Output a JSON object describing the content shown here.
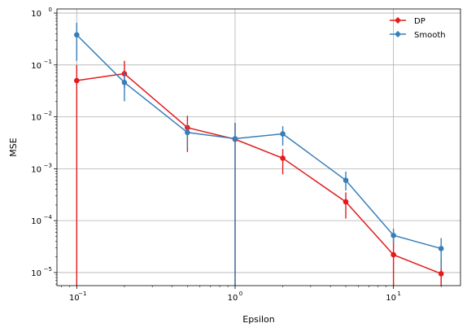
{
  "chart_data": {
    "type": "line",
    "xlabel": "Epsilon",
    "ylabel": "MSE",
    "xscale": "log",
    "yscale": "log",
    "xlim": [
      0.075,
      26.5
    ],
    "ylim": [
      5.6e-06,
      1.2
    ],
    "grid": true,
    "legend_position": "top-right",
    "x_ticks": [
      {
        "value": 0.1,
        "base": "10",
        "exp": "−1"
      },
      {
        "value": 1,
        "base": "10",
        "exp": "0"
      },
      {
        "value": 10,
        "base": "10",
        "exp": "1"
      }
    ],
    "y_ticks": [
      {
        "value": 1e-05,
        "base": "10",
        "exp": "−5"
      },
      {
        "value": 0.0001,
        "base": "10",
        "exp": "−4"
      },
      {
        "value": 0.001,
        "base": "10",
        "exp": "−3"
      },
      {
        "value": 0.01,
        "base": "10",
        "exp": "−2"
      },
      {
        "value": 0.1,
        "base": "10",
        "exp": "−1"
      },
      {
        "value": 1,
        "base": "10",
        "exp": "0"
      }
    ],
    "x": [
      0.1,
      0.2,
      0.5,
      1,
      2,
      5,
      10,
      20
    ],
    "series": [
      {
        "name": "DP",
        "color": "#e41a1c",
        "values": [
          0.05,
          0.068,
          0.0062,
          0.0037,
          0.0016,
          0.00023,
          2.2e-05,
          9.5e-06
        ],
        "err_low": [
          1e-06,
          0.036,
          0.0021,
          1e-06,
          0.00078,
          0.00011,
          1e-06,
          1e-06
        ],
        "err_high": [
          0.1,
          0.12,
          0.0105,
          0.0075,
          0.0024,
          0.00035,
          4.5e-05,
          1.9e-05
        ]
      },
      {
        "name": "Smooth",
        "color": "#377eb8",
        "values": [
          0.38,
          0.046,
          0.005,
          0.0038,
          0.0047,
          0.0006,
          5.2e-05,
          2.9e-05
        ],
        "err_low": [
          0.12,
          0.02,
          0.0026,
          1e-06,
          0.0028,
          0.00038,
          3.6e-05,
          1.2e-05
        ],
        "err_high": [
          0.65,
          0.072,
          0.0075,
          0.0077,
          0.0066,
          0.00088,
          7e-05,
          4.6e-05
        ]
      }
    ]
  }
}
